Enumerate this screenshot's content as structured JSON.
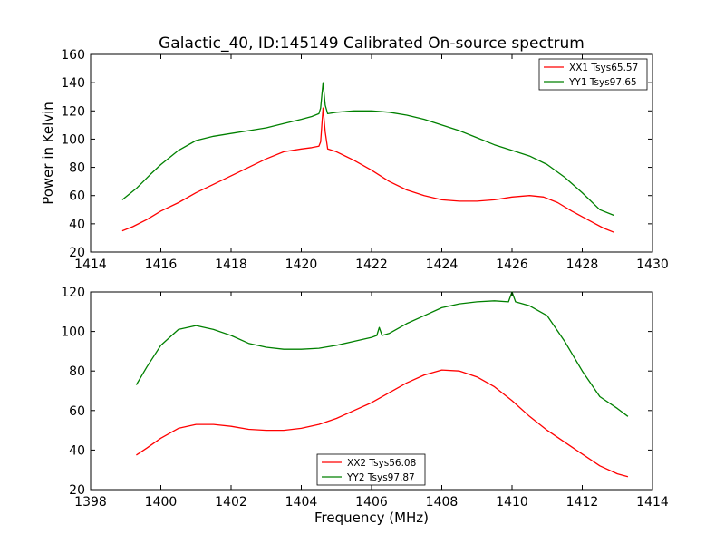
{
  "chart_data": [
    {
      "type": "line",
      "title": "Galactic_40, ID:145149 Calibrated On-source spectrum",
      "xlabel": "",
      "ylabel": "Power in Kelvin",
      "xlim": [
        1414,
        1430
      ],
      "ylim": [
        20,
        160
      ],
      "xticks": [
        "1414",
        "1416",
        "1418",
        "1420",
        "1422",
        "1424",
        "1426",
        "1428",
        "1430"
      ],
      "yticks": [
        "20",
        "40",
        "60",
        "80",
        "100",
        "120",
        "140",
        "160"
      ],
      "grid": false,
      "legend": "top-right",
      "series": [
        {
          "name": "XX1 Tsys65.57",
          "color": "#ff0000",
          "x": [
            1414.9,
            1415.2,
            1415.6,
            1416.0,
            1416.5,
            1417.0,
            1417.5,
            1418.0,
            1418.5,
            1419.0,
            1419.5,
            1420.0,
            1420.3,
            1420.5,
            1420.55,
            1420.62,
            1420.68,
            1420.75,
            1421.0,
            1421.5,
            1422.0,
            1422.5,
            1423.0,
            1423.5,
            1424.0,
            1424.5,
            1425.0,
            1425.5,
            1426.0,
            1426.5,
            1426.9,
            1427.3,
            1427.7,
            1428.0,
            1428.3,
            1428.6,
            1428.9
          ],
          "y": [
            35,
            38,
            43,
            49,
            55,
            62,
            68,
            74,
            80,
            86,
            91,
            93,
            94,
            95,
            98,
            122,
            105,
            93,
            91,
            85,
            78,
            70,
            64,
            60,
            57,
            56,
            56,
            57,
            59,
            60,
            59,
            55,
            49,
            45,
            41,
            37,
            34
          ]
        },
        {
          "name": "YY1 Tsys97.65",
          "color": "#008000",
          "x": [
            1414.9,
            1415.3,
            1415.7,
            1416.0,
            1416.5,
            1417.0,
            1417.5,
            1418.0,
            1418.5,
            1419.0,
            1419.5,
            1420.0,
            1420.3,
            1420.5,
            1420.55,
            1420.62,
            1420.68,
            1420.75,
            1421.0,
            1421.5,
            1422.0,
            1422.5,
            1423.0,
            1423.5,
            1424.0,
            1424.5,
            1425.0,
            1425.5,
            1426.0,
            1426.5,
            1427.0,
            1427.5,
            1428.0,
            1428.5,
            1428.9
          ],
          "y": [
            57,
            65,
            75,
            82,
            92,
            99,
            102,
            104,
            106,
            108,
            111,
            114,
            116,
            118,
            122,
            140,
            124,
            118,
            119,
            120,
            120,
            119,
            117,
            114,
            110,
            106,
            101,
            96,
            92,
            88,
            82,
            73,
            62,
            50,
            46
          ]
        }
      ]
    },
    {
      "type": "line",
      "title": "",
      "xlabel": "Frequency (MHz)",
      "ylabel": "",
      "xlim": [
        1398,
        1414
      ],
      "ylim": [
        20,
        120
      ],
      "xticks": [
        "1398",
        "1400",
        "1402",
        "1404",
        "1406",
        "1408",
        "1410",
        "1412",
        "1414"
      ],
      "yticks": [
        "20",
        "40",
        "60",
        "80",
        "100",
        "120"
      ],
      "grid": false,
      "legend": "bottom-center",
      "series": [
        {
          "name": "XX2 Tsys56.08",
          "color": "#ff0000",
          "x": [
            1399.3,
            1399.6,
            1400.0,
            1400.5,
            1401.0,
            1401.5,
            1402.0,
            1402.5,
            1403.0,
            1403.5,
            1404.0,
            1404.5,
            1405.0,
            1405.5,
            1406.0,
            1406.5,
            1407.0,
            1407.5,
            1408.0,
            1408.5,
            1409.0,
            1409.5,
            1410.0,
            1410.5,
            1411.0,
            1411.5,
            1412.0,
            1412.5,
            1413.0,
            1413.3
          ],
          "y": [
            37.5,
            41,
            46,
            51,
            53,
            53,
            52,
            50.5,
            50,
            50,
            51,
            53,
            56,
            60,
            64,
            69,
            74,
            78,
            80.5,
            80,
            77,
            72,
            65,
            57,
            50,
            44,
            38,
            32,
            28,
            26.5
          ]
        },
        {
          "name": "YY2 Tsys97.87",
          "color": "#008000",
          "x": [
            1399.3,
            1399.6,
            1400.0,
            1400.5,
            1401.0,
            1401.5,
            1402.0,
            1402.5,
            1403.0,
            1403.5,
            1404.0,
            1404.5,
            1405.0,
            1405.5,
            1406.0,
            1406.15,
            1406.22,
            1406.3,
            1406.5,
            1407.0,
            1407.5,
            1408.0,
            1408.5,
            1409.0,
            1409.5,
            1409.9,
            1410.0,
            1410.1,
            1410.5,
            1411.0,
            1411.5,
            1412.0,
            1412.5,
            1413.0,
            1413.3
          ],
          "y": [
            73,
            82,
            93,
            101,
            103,
            101,
            98,
            94,
            92,
            91,
            91,
            91.5,
            93,
            95,
            97,
            98,
            102,
            98,
            99,
            104,
            108,
            112,
            114,
            115,
            115.5,
            115,
            120,
            115,
            113,
            108,
            95,
            80,
            67,
            61,
            57
          ]
        }
      ]
    }
  ]
}
